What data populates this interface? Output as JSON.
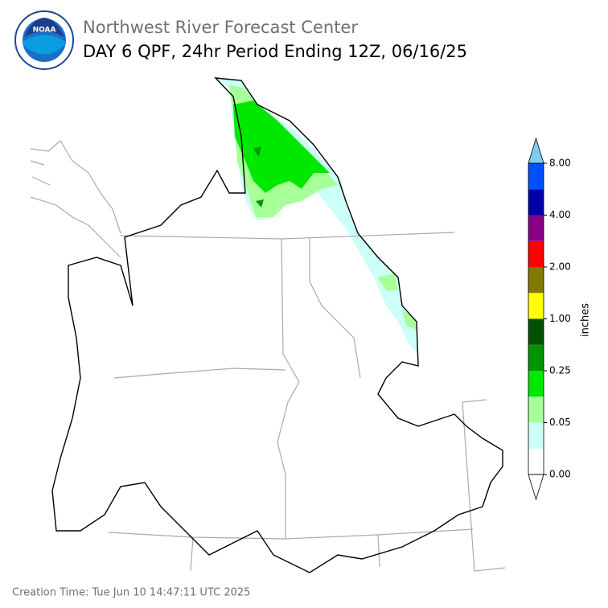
{
  "header": {
    "title": "Northwest River Forecast Center",
    "subtitle": "DAY 6 QPF, 24hr Period Ending 12Z, 06/16/25",
    "logo": "NOAA"
  },
  "colorbar": {
    "label": "inches",
    "colors": [
      "#ffffff",
      "#ccfff8",
      "#a8ff98",
      "#00e800",
      "#009400",
      "#005000",
      "#ffff00",
      "#807a00",
      "#ff0000",
      "#880088",
      "#0000a8",
      "#0050ff"
    ],
    "over_color": "#7ccdf0",
    "ticks": [
      "0.00",
      "0.05",
      "0.25",
      "1.00",
      "2.00",
      "4.00",
      "8.00"
    ]
  },
  "footer": {
    "creation_time": "Creation Time: Tue Jun 10 14:47:11 UTC 2025"
  }
}
